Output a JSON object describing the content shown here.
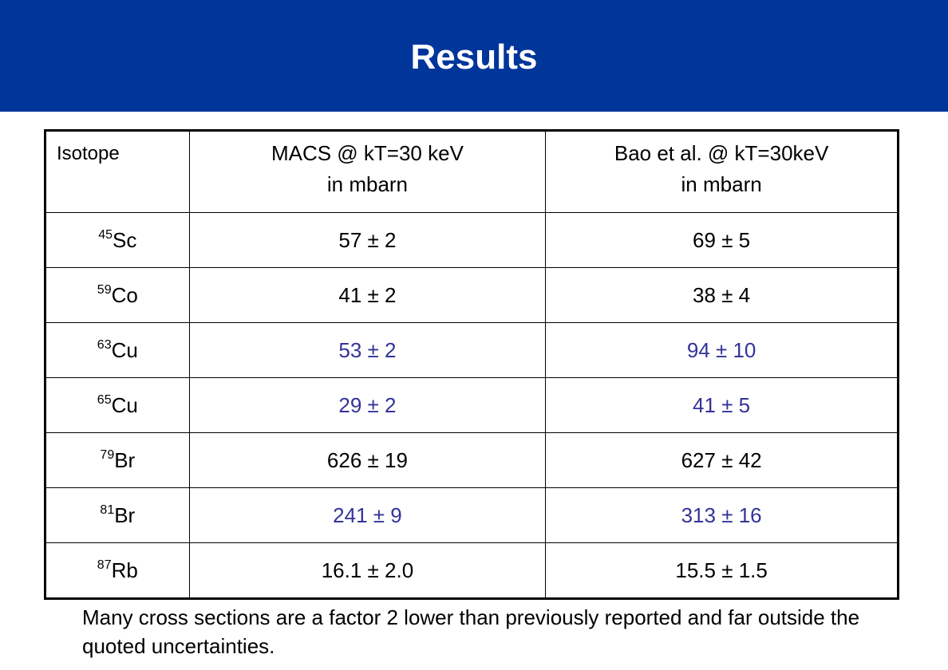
{
  "slide": {
    "title": "Results"
  },
  "table": {
    "headers": [
      {
        "line1": "Isotope",
        "line2": ""
      },
      {
        "line1": "MACS @ kT=30 keV",
        "line2": "in mbarn"
      },
      {
        "line1": "Bao et al. @ kT=30keV",
        "line2": "in mbarn"
      }
    ],
    "rows": [
      {
        "mass": "45",
        "element": "Sc",
        "macs": "57 ± 2",
        "bao": "69 ± 5",
        "highlight": false
      },
      {
        "mass": "59",
        "element": "Co",
        "macs": "41 ± 2",
        "bao": "38 ± 4",
        "highlight": false
      },
      {
        "mass": "63",
        "element": "Cu",
        "macs": "53 ± 2",
        "bao": "94 ± 10",
        "highlight": true
      },
      {
        "mass": "65",
        "element": "Cu",
        "macs": "29 ± 2",
        "bao": "41 ± 5",
        "highlight": true
      },
      {
        "mass": "79",
        "element": "Br",
        "macs": "626 ± 19",
        "bao": "627 ± 42",
        "highlight": false
      },
      {
        "mass": "81",
        "element": "Br",
        "macs": "241 ± 9",
        "bao": "313 ± 16",
        "highlight": true
      },
      {
        "mass": "87",
        "element": "Rb",
        "macs": "16.1 ± 2.0",
        "bao": "15.5 ± 1.5",
        "highlight": false
      }
    ]
  },
  "note": "Many cross sections are a factor 2 lower than previously reported and far outside the quoted uncertainties.",
  "colors": {
    "banner": "#00359a",
    "highlight_text": "#333399"
  }
}
